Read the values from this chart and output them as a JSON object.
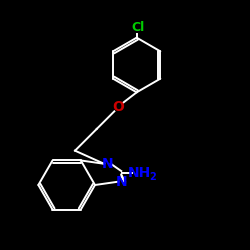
{
  "background_color": "#000000",
  "bond_color": "#ffffff",
  "atom_colors": {
    "Cl": "#00cc00",
    "O": "#cc0000",
    "N": "#0000ff"
  },
  "figsize": [
    2.5,
    2.5
  ],
  "dpi": 100,
  "lw": 1.4
}
